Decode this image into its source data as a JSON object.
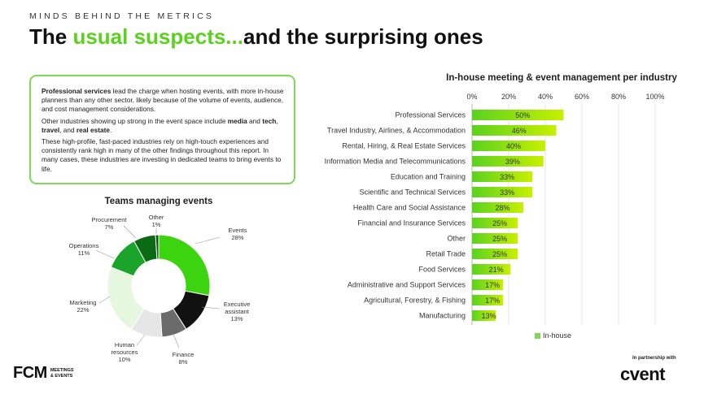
{
  "header": {
    "eyebrow": "MINDS BEHIND THE METRICS",
    "title_part1": "The ",
    "title_highlight": "usual suspects...",
    "title_part2": "and the surprising ones"
  },
  "callout": {
    "p1_bold": "Professional services",
    "p1_rest": " lead the charge when hosting events, with more in-house planners than any other sector, likely because of the volume of events, audience, and cost management considerations.",
    "p2_a": "Other industries showing up strong in the event space include ",
    "p2_b1": "media",
    "p2_c": " and ",
    "p2_b2": "tech",
    "p2_d": ", ",
    "p2_b3": "travel",
    "p2_e": ", and ",
    "p2_b4": "real estate",
    "p2_f": ".",
    "p3": "These high-profile, fast-paced industries rely on high-touch experiences and consistently rank high in many of the other findings throughout this report. In many cases, these industries are investing in dedicated teams to bring events to life."
  },
  "colors": {
    "accent": "#5ad21f",
    "bar_end": "#c8f000",
    "bar_start": "#5ad21f"
  },
  "chart_data": [
    {
      "type": "pie",
      "title": "Teams managing events",
      "donut": true,
      "slices": [
        {
          "name": "Events",
          "value": 28,
          "label": "28%",
          "color": "#3cd30f"
        },
        {
          "name": "Executive assistant",
          "value": 13,
          "label": "13%",
          "color": "#111111"
        },
        {
          "name": "Finance",
          "value": 8,
          "label": "8%",
          "color": "#6b6b6b"
        },
        {
          "name": "Human resources",
          "value": 10,
          "label": "10%",
          "color": "#e6e6e6"
        },
        {
          "name": "Marketing",
          "value": 22,
          "label": "22%",
          "color": "#e6f7df"
        },
        {
          "name": "Operations",
          "value": 11,
          "label": "11%",
          "color": "#1aa52a"
        },
        {
          "name": "Procurement",
          "value": 7,
          "label": "7%",
          "color": "#0b6b14"
        },
        {
          "name": "Other",
          "value": 1,
          "label": "1%",
          "color": "#0f4d12"
        }
      ],
      "slice_labels": {
        "events": [
          "Events",
          "28%"
        ],
        "exec": [
          "Executive",
          "assistant",
          "13%"
        ],
        "finance": [
          "Finance",
          "8%"
        ],
        "hr": [
          "Human",
          "resources",
          "10%"
        ],
        "marketing": [
          "Marketing",
          "22%"
        ],
        "operations": [
          "Operations",
          "11%"
        ],
        "procurement": [
          "Procurement",
          "7%"
        ],
        "other": [
          "Other",
          "1%"
        ]
      }
    },
    {
      "type": "bar",
      "orientation": "horizontal",
      "title": "In-house meeting & event management per industry",
      "categories": [
        "Professional Services",
        "Travel Industry, Airlines, & Accommodation",
        "Rental, Hiring, & Real Estate Services",
        "Information Media and Telecommunications",
        "Education and Training",
        "Scientific and Technical Services",
        "Health Care and Social Assistance",
        "Financial and Insurance Services",
        "Other",
        "Retail Trade",
        "Food Services",
        "Administrative and Support Services",
        "Agricultural, Forestry, & Fishing",
        "Manufacturing"
      ],
      "values": [
        50,
        46,
        40,
        39,
        33,
        33,
        28,
        25,
        25,
        25,
        21,
        17,
        17,
        13
      ],
      "xlim": [
        0,
        100
      ],
      "ticks": [
        0,
        20,
        40,
        60,
        80,
        100
      ],
      "tick_labels": [
        "0%",
        "20%",
        "40%",
        "60%",
        "80%",
        "100%"
      ],
      "grid": true,
      "legend": "In-house"
    }
  ],
  "footer": {
    "fcm_mark": "FCM",
    "fcm_sub1": "MEETINGS",
    "fcm_sub2": "& EVENTS",
    "partner": "In partnership with",
    "cvent": "cvent"
  }
}
